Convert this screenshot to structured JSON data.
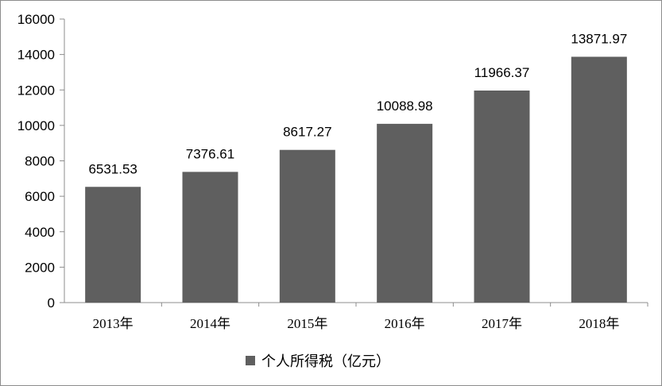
{
  "chart_data": {
    "type": "bar",
    "categories": [
      "2013年",
      "2014年",
      "2015年",
      "2016年",
      "2017年",
      "2018年"
    ],
    "series": [
      {
        "name": "个人所得税（亿元）",
        "values": [
          6531.53,
          7376.61,
          8617.27,
          10088.98,
          11966.37,
          13871.97
        ]
      }
    ],
    "data_labels": [
      "6531.53",
      "7376.61",
      "8617.27",
      "10088.98",
      "11966.37",
      "13871.97"
    ],
    "y_ticks": [
      "0",
      "2000",
      "4000",
      "6000",
      "8000",
      "10000",
      "12000",
      "14000",
      "16000"
    ],
    "ylim": [
      0,
      16000
    ],
    "grid": false,
    "legend_position": "bottom",
    "bar_color": "#5f5f5f"
  }
}
